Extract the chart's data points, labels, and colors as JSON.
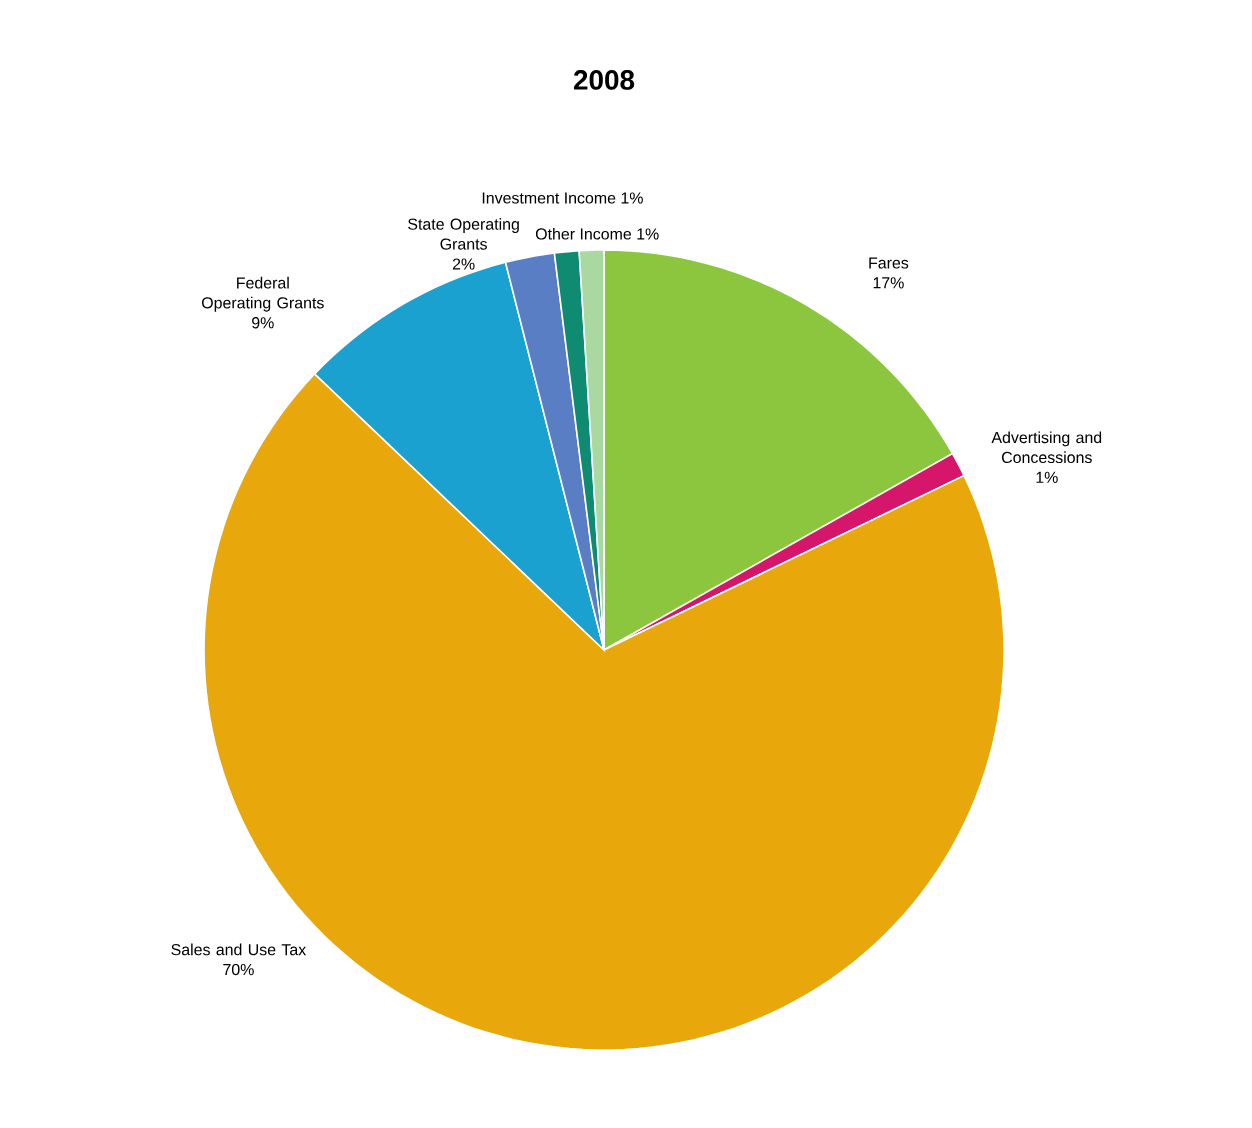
{
  "chart_data": {
    "type": "pie",
    "title": "2008",
    "categories": [
      "Fares",
      "Advertising and Concessions",
      "Sales and Use Tax",
      "Federal Operating Grants",
      "State Operating Grants",
      "Investment Income",
      "Other Income"
    ],
    "values": [
      17,
      1,
      70,
      9,
      2,
      1,
      1
    ],
    "value_labels": [
      "17%",
      "1%",
      "70%",
      "9%",
      "2%",
      "1%",
      "1%"
    ],
    "colors": [
      "#8cc63e",
      "#d6166b",
      "#e8a70a",
      "#1ba1d0",
      "#5a7ec4",
      "#0e8b70",
      "#a9d9a0"
    ]
  }
}
